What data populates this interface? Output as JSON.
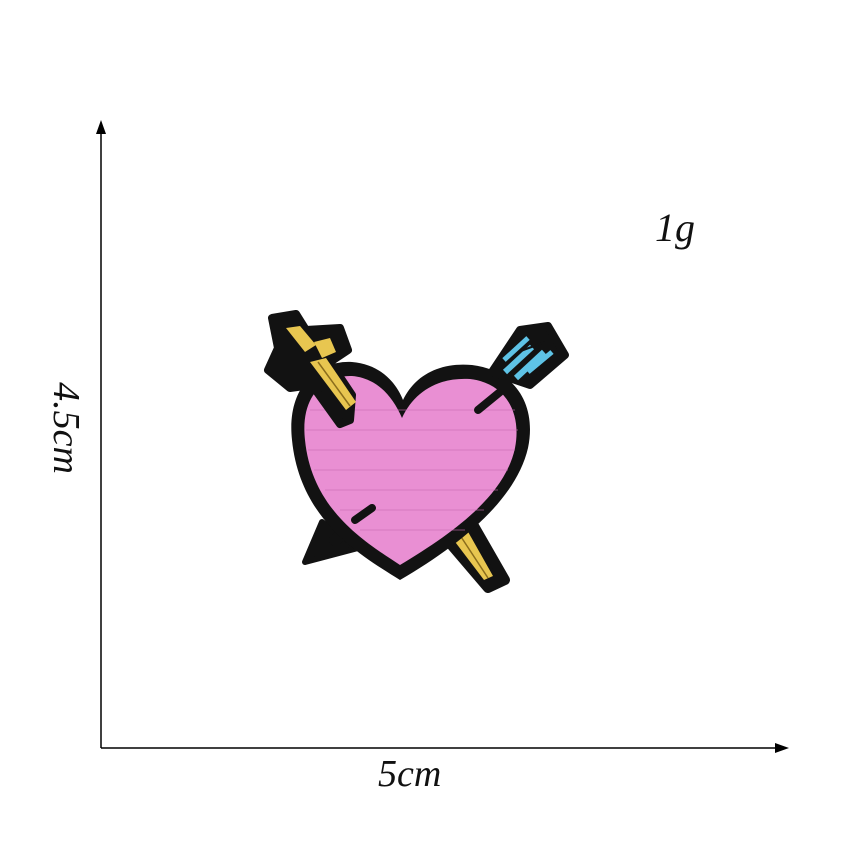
{
  "labels": {
    "weight": "1g",
    "width": "5cm",
    "height": "4.5cm"
  },
  "colors": {
    "heart": "#e98fd3",
    "outline": "#121212",
    "dagger": "#e8c650",
    "feather": "#5ec3e6"
  },
  "icon": "heart-patch-icon"
}
